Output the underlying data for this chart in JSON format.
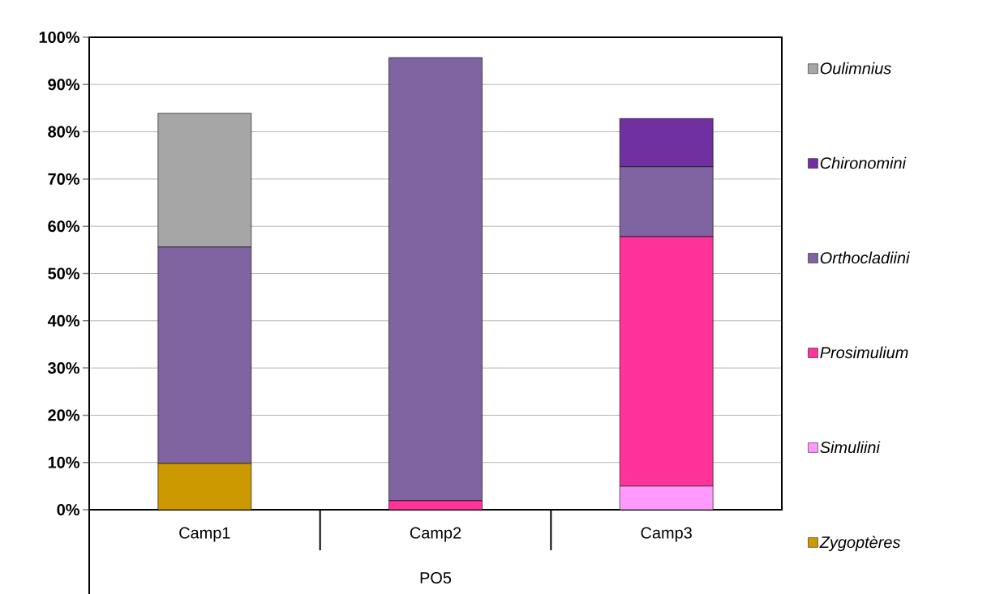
{
  "chart_data": {
    "type": "bar",
    "stacked": true,
    "categories": [
      "Camp1",
      "Camp2",
      "Camp3"
    ],
    "xlabel": "PO5",
    "series": [
      {
        "name": "Zygoptères",
        "color": "#cc9900",
        "values": [
          9.8,
          null,
          null
        ]
      },
      {
        "name": "Simuliini",
        "color": "#ff99ff",
        "values": [
          null,
          null,
          5.0
        ]
      },
      {
        "name": "Prosimulium",
        "color": "#ff3399",
        "values": [
          null,
          1.9,
          52.8
        ]
      },
      {
        "name": "Orthocladiini",
        "color": "#8064a2",
        "values": [
          45.8,
          93.8,
          14.8
        ]
      },
      {
        "name": "Chironomini",
        "color": "#7030a0",
        "values": [
          null,
          null,
          10.2
        ]
      },
      {
        "name": "Oulimnius",
        "color": "#a6a6a6",
        "values": [
          28.3,
          null,
          null
        ]
      }
    ],
    "ylim": [
      0,
      100
    ],
    "yticks": [
      {
        "value": 0,
        "label": "0%"
      },
      {
        "value": 10,
        "label": "10%"
      },
      {
        "value": 20,
        "label": "20%"
      },
      {
        "value": 30,
        "label": "30%"
      },
      {
        "value": 40,
        "label": "40%"
      },
      {
        "value": 50,
        "label": "50%"
      },
      {
        "value": 60,
        "label": "60%"
      },
      {
        "value": 70,
        "label": "70%"
      },
      {
        "value": 80,
        "label": "80%"
      },
      {
        "value": 90,
        "label": "90%"
      },
      {
        "value": 100,
        "label": "100%"
      }
    ],
    "grid": "y",
    "legend": "right"
  }
}
